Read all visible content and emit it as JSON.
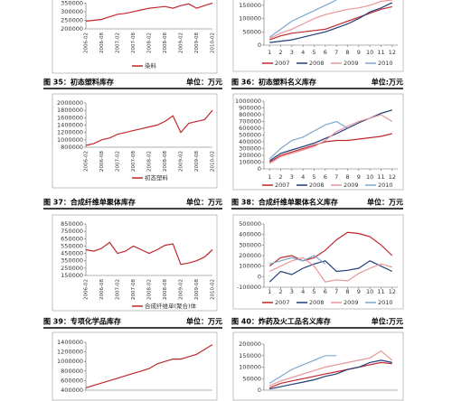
{
  "captions": [
    {
      "title": "图 35：初态塑料库存",
      "unit": "单位：万元"
    },
    {
      "title": "图 36：初态塑料名义库存",
      "unit": "单位:万元"
    },
    {
      "title": "图 37：合成纤维单聚体库存",
      "unit": "单位：万元"
    },
    {
      "title": "图 38：合成纤维单聚体名义库存",
      "unit": "单位：万元"
    },
    {
      "title": "图 39：专项化学品库存",
      "unit": "单位：万元"
    },
    {
      "title": "图 40：炸药及火工品名义库存",
      "unit": "单位:万元"
    }
  ],
  "chart_data": [
    {
      "type": "line",
      "categories": [
        "2006-02",
        null,
        "2006-08",
        null,
        "2007-02",
        null,
        "2007-08",
        null,
        "2008-02",
        null,
        "2008-08",
        null,
        "2009-02",
        null,
        "2009-08",
        null,
        "2010-02"
      ],
      "series": [
        {
          "name": "染料",
          "color": "#c0272d",
          "values": [
            245000,
            250000,
            255000,
            270000,
            285000,
            290000,
            300000,
            310000,
            320000,
            325000,
            330000,
            320000,
            335000,
            345000,
            320000,
            335000,
            350000
          ]
        }
      ],
      "ylim": [
        200000,
        352000
      ],
      "yticks": [
        200000,
        250000,
        300000,
        350000
      ]
    },
    {
      "type": "line",
      "x": [
        1,
        2,
        3,
        4,
        5,
        6,
        7,
        8,
        9,
        10,
        11,
        12
      ],
      "xlim": [
        0.5,
        12.5
      ],
      "xticks": [
        1,
        2,
        3,
        4,
        5,
        6,
        7,
        8,
        9,
        10,
        11,
        12
      ],
      "series": [
        {
          "name": "2007",
          "color": "#c0272d",
          "values": [
            20000,
            35000,
            45000,
            50000,
            55000,
            60000,
            75000,
            90000,
            105000,
            120000,
            135000,
            145000
          ]
        },
        {
          "name": "2008",
          "color": "#1f3d7a",
          "values": [
            10000,
            15000,
            20000,
            30000,
            40000,
            50000,
            65000,
            80000,
            100000,
            125000,
            140000,
            160000
          ]
        },
        {
          "name": "2009",
          "color": "#e8969a",
          "values": [
            25000,
            45000,
            60000,
            80000,
            100000,
            115000,
            125000,
            135000,
            140000,
            150000,
            165000,
            170000
          ]
        },
        {
          "name": "2010",
          "color": "#7fa7cc",
          "values": [
            30000,
            60000,
            90000,
            110000,
            130000,
            150000,
            170000,
            null,
            null,
            null,
            null,
            null
          ]
        }
      ],
      "ylim": [
        0,
        170000
      ],
      "yticks": [
        0,
        50000,
        100000,
        150000
      ]
    },
    {
      "type": "line",
      "categories": [
        "2006-02",
        null,
        "2006-08",
        null,
        "2007-02",
        null,
        "2007-08",
        null,
        "2008-02",
        null,
        "2008-08",
        null,
        "2009-02",
        null,
        "2009-08",
        null,
        "2010-02"
      ],
      "series": [
        {
          "name": "初态塑料",
          "color": "#c0272d",
          "values": [
            850000,
            900000,
            1000000,
            1050000,
            1150000,
            1200000,
            1250000,
            1300000,
            1350000,
            1400000,
            1500000,
            1650000,
            1200000,
            1450000,
            1500000,
            1550000,
            1800000
          ]
        }
      ],
      "ylim": [
        800000,
        2000000
      ],
      "yticks": [
        800000,
        1000000,
        1200000,
        1400000,
        1600000,
        1800000,
        2000000
      ]
    },
    {
      "type": "line",
      "x": [
        1,
        2,
        3,
        4,
        5,
        6,
        7,
        8,
        9,
        10,
        11,
        12
      ],
      "xlim": [
        0.5,
        12.5
      ],
      "xticks": [
        1,
        2,
        3,
        4,
        5,
        6,
        7,
        8,
        9,
        10,
        11,
        12
      ],
      "series": [
        {
          "name": "2007",
          "color": "#c0272d",
          "values": [
            100000,
            200000,
            250000,
            300000,
            350000,
            400000,
            420000,
            420000,
            440000,
            460000,
            480000,
            520000
          ]
        },
        {
          "name": "2008",
          "color": "#1f3d7a",
          "values": [
            120000,
            230000,
            280000,
            330000,
            380000,
            450000,
            520000,
            600000,
            680000,
            750000,
            820000,
            870000
          ]
        },
        {
          "name": "2009",
          "color": "#e8969a",
          "values": [
            80000,
            180000,
            230000,
            280000,
            330000,
            420000,
            550000,
            630000,
            700000,
            750000,
            800000,
            700000
          ]
        },
        {
          "name": "2010",
          "color": "#7fa7cc",
          "values": [
            150000,
            300000,
            420000,
            470000,
            560000,
            650000,
            700000,
            600000,
            null,
            null,
            null,
            null
          ]
        }
      ],
      "ylim": [
        0,
        1000000
      ],
      "yticks": [
        0,
        100000,
        200000,
        300000,
        400000,
        500000,
        600000,
        700000,
        800000,
        900000,
        1000000
      ]
    },
    {
      "type": "line",
      "categories": [
        "2006-02",
        null,
        "2006-08",
        null,
        "2007-02",
        null,
        "2007-08",
        null,
        "2008-02",
        null,
        "2008-08",
        null,
        "2009-02",
        null,
        "2009-08",
        null,
        "2010-02"
      ],
      "series": [
        {
          "name": "合成纤维单(聚合)体",
          "color": "#c0272d",
          "values": [
            500000,
            480000,
            520000,
            600000,
            450000,
            480000,
            550000,
            500000,
            450000,
            500000,
            560000,
            580000,
            300000,
            320000,
            350000,
            400000,
            500000
          ]
        }
      ],
      "ylim": [
        150000,
        850000
      ],
      "yticks": [
        150000,
        250000,
        350000,
        450000,
        550000,
        650000,
        750000,
        850000
      ]
    },
    {
      "type": "line",
      "x": [
        1,
        2,
        3,
        4,
        5,
        6,
        7,
        8,
        9,
        10,
        11,
        12
      ],
      "xlim": [
        0.5,
        12.5
      ],
      "xticks": [
        1,
        2,
        3,
        4,
        5,
        6,
        7,
        8,
        9,
        10,
        11,
        12
      ],
      "series": [
        {
          "name": "2007",
          "color": "#c0272d",
          "values": [
            100000,
            180000,
            200000,
            150000,
            180000,
            250000,
            350000,
            420000,
            410000,
            380000,
            300000,
            200000
          ]
        },
        {
          "name": "2008",
          "color": "#1f3d7a",
          "values": [
            -50000,
            50000,
            20000,
            80000,
            120000,
            150000,
            50000,
            60000,
            80000,
            150000,
            100000,
            50000
          ]
        },
        {
          "name": "2009",
          "color": "#e8969a",
          "values": [
            50000,
            100000,
            150000,
            180000,
            100000,
            -50000,
            -30000,
            -40000,
            30000,
            80000,
            120000,
            90000
          ]
        },
        {
          "name": "2010",
          "color": "#7fa7cc",
          "values": [
            120000,
            150000,
            180000,
            150000,
            200000,
            120000,
            null,
            null,
            null,
            null,
            null,
            null
          ]
        }
      ],
      "ylim": [
        -100000,
        500000
      ],
      "yticks": [
        -100000,
        0,
        100000,
        200000,
        300000,
        400000,
        500000
      ]
    },
    {
      "type": "line",
      "categories": [
        null,
        null,
        null,
        null,
        null,
        null,
        null,
        null,
        null,
        null,
        null,
        null,
        null,
        null,
        null,
        null,
        null
      ],
      "series": [
        {
          "color": "#c0272d",
          "values": [
            450000,
            500000,
            550000,
            600000,
            650000,
            700000,
            750000,
            800000,
            850000,
            950000,
            1000000,
            1050000,
            1050000,
            1100000,
            1150000,
            1250000,
            1350000
          ]
        }
      ],
      "ylim": [
        400000,
        1400000
      ],
      "yticks": [
        400000,
        600000,
        800000,
        1000000,
        1200000,
        1400000
      ]
    },
    {
      "type": "line",
      "x": [
        1,
        2,
        3,
        4,
        5,
        6,
        7,
        8,
        9,
        10,
        11,
        12
      ],
      "xlim": [
        0.5,
        12.5
      ],
      "series": [
        {
          "color": "#c0272d",
          "values": [
            10000,
            30000,
            40000,
            50000,
            60000,
            70000,
            80000,
            90000,
            100000,
            110000,
            120000,
            115000
          ]
        },
        {
          "color": "#1f3d7a",
          "values": [
            5000,
            15000,
            25000,
            35000,
            45000,
            60000,
            70000,
            90000,
            100000,
            120000,
            130000,
            120000
          ]
        },
        {
          "color": "#e8969a",
          "values": [
            20000,
            40000,
            55000,
            70000,
            85000,
            100000,
            110000,
            120000,
            130000,
            140000,
            170000,
            130000
          ]
        },
        {
          "color": "#7fa7cc",
          "values": [
            30000,
            60000,
            90000,
            110000,
            130000,
            150000,
            150000,
            null,
            null,
            null,
            null,
            null
          ]
        }
      ],
      "ylim": [
        0,
        200000
      ],
      "yticks": [
        0,
        50000,
        100000,
        150000,
        200000
      ]
    }
  ]
}
